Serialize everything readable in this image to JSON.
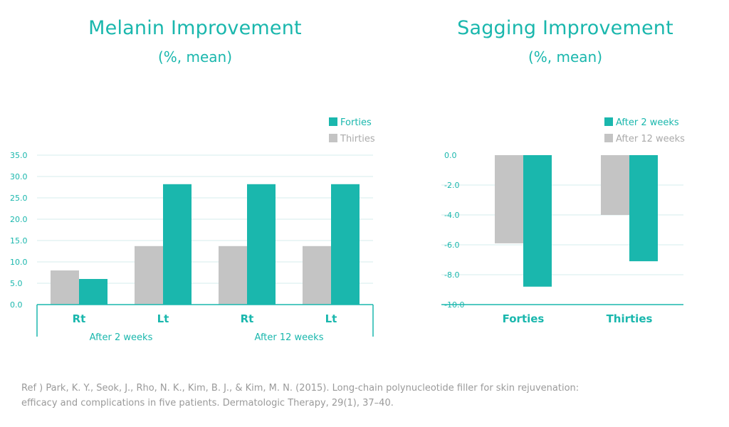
{
  "colors": {
    "teal": "#1ab7ad",
    "gray": "#c4c4c4",
    "grid": "#d6eeec",
    "axis": "#1ab7ad",
    "ref": "#9a9a9a"
  },
  "reference": {
    "line1": "Ref ) Park, K. Y., Seok, J., Rho, N. K., Kim, B. J., & Kim, M. N. (2015). Long-chain polynucleotide filler for skin rejuvenation:",
    "line2": "efficacy and complications in five patients. Dermatologic Therapy, 29(1), 37–40."
  },
  "chart_data": [
    {
      "type": "bar",
      "title": "Melanin Improvement",
      "subtitle": "(%, mean)",
      "categories": [
        "Rt",
        "Lt",
        "Rt",
        "Lt"
      ],
      "groups": [
        {
          "label": "After 2 weeks",
          "span": [
            0,
            1
          ]
        },
        {
          "label": "After 12 weeks",
          "span": [
            2,
            3
          ]
        }
      ],
      "series": [
        {
          "name": "Thirties",
          "color": "#c4c4c4",
          "values": [
            8.0,
            13.7,
            13.7,
            13.7
          ]
        },
        {
          "name": "Forties",
          "color": "#1ab7ad",
          "values": [
            6.0,
            28.2,
            28.2,
            28.2
          ]
        }
      ],
      "legend": [
        "Forties",
        "Thirties"
      ],
      "ylim": [
        0,
        35
      ],
      "yticks": [
        "0.0",
        "5.0",
        "10.0",
        "15.0",
        "20.0",
        "25.0",
        "30.0",
        "35.0"
      ],
      "grid": true
    },
    {
      "type": "bar",
      "title": "Sagging Improvement",
      "subtitle": "(%, mean)",
      "categories": [
        "Forties",
        "Thirties"
      ],
      "series": [
        {
          "name": "After 12 weeks",
          "color": "#c4c4c4",
          "values": [
            -5.9,
            -4.0
          ]
        },
        {
          "name": "After 2 weeks",
          "color": "#1ab7ad",
          "values": [
            -8.8,
            -7.1
          ]
        }
      ],
      "legend": [
        "After 2 weeks",
        "After 12 weeks"
      ],
      "ylim": [
        -10,
        0
      ],
      "yticks": [
        "0.0",
        "-2.0",
        "-4.0",
        "-6.0",
        "-8.0",
        "-10.0"
      ],
      "grid": true
    }
  ]
}
